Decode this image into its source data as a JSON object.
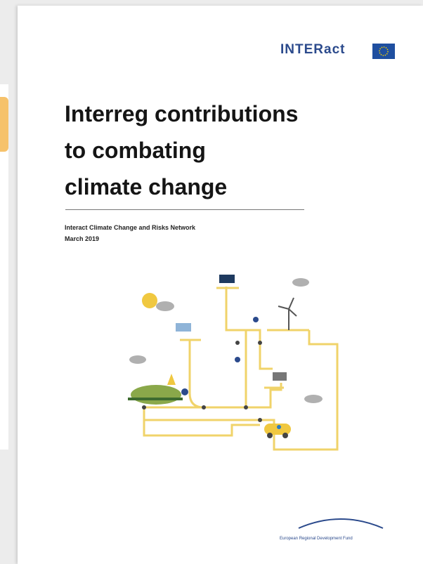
{
  "logo": {
    "text": "INTERact"
  },
  "title": {
    "lines": [
      "Interreg contributions",
      "to combating",
      "climate change"
    ]
  },
  "subtitle": {
    "lines": [
      "Interact Climate Change and Risks Network",
      "March 2019"
    ]
  },
  "footer": {
    "text": "European Regional Development Fund"
  }
}
